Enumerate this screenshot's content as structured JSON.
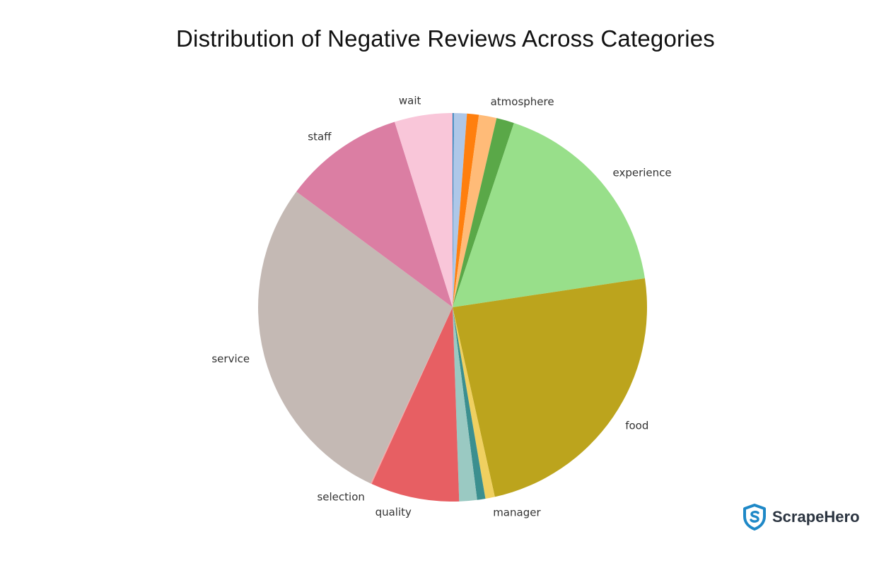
{
  "page": {
    "title": "Distribution of Negative Reviews Across Categories",
    "brand": {
      "name": "ScrapeHero",
      "icon": "scrapehero-shield-icon",
      "color": "#1e88c7"
    }
  },
  "chart_data": {
    "type": "pie",
    "title": "Distribution of Negative Reviews Across Categories",
    "start": "12 o'clock",
    "direction": "clockwise",
    "slices": [
      {
        "label": "",
        "value": 0.1,
        "color": "#1f77b4"
      },
      {
        "label": "",
        "value": 1.1,
        "color": "#aec7e8"
      },
      {
        "label": "",
        "value": 1.0,
        "color": "#ff7f0e"
      },
      {
        "label": "atmosphere",
        "value": 1.5,
        "color": "#ffbb78"
      },
      {
        "label": "",
        "value": 1.5,
        "color": "#5aa848"
      },
      {
        "label": "experience",
        "value": 17.8,
        "color": "#98df8a"
      },
      {
        "label": "food",
        "value": 24.3,
        "color": "#bca41d"
      },
      {
        "label": "manager",
        "value": 0.8,
        "color": "#f0d060"
      },
      {
        "label": "",
        "value": 0.7,
        "color": "#3b8f8f"
      },
      {
        "label": "",
        "value": 1.5,
        "color": "#9ac9c2"
      },
      {
        "label": "quality",
        "value": 7.5,
        "color": "#e75f63"
      },
      {
        "label": "selection",
        "value": 0.1,
        "color": "#f5a3a3"
      },
      {
        "label": "service",
        "value": 28.7,
        "color": "#c4b9b4"
      },
      {
        "label": "staff",
        "value": 10.2,
        "color": "#db7ea3"
      },
      {
        "label": "wait",
        "value": 4.9,
        "color": "#f9c6d9"
      }
    ]
  }
}
